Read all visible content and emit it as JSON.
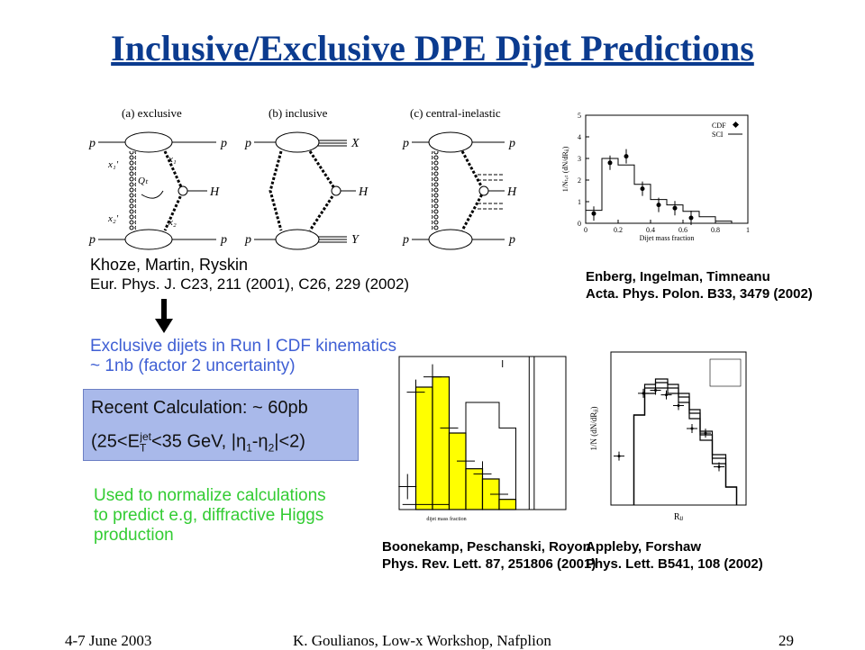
{
  "title": "Inclusive/Exclusive DPE Dijet Predictions",
  "diagrams": {
    "a_label": "(a) exclusive",
    "b_label": "(b) inclusive",
    "c_label": "(c) central-inelastic",
    "p": "p",
    "H": "H",
    "X": "X",
    "Y": "Y",
    "x1p": "x₁'",
    "x1": "x₁",
    "x2p": "x₂'",
    "x2": "x₂",
    "Qt": "Qₜ"
  },
  "cite_kmr": {
    "line1": "Khoze, Martin, Ryskin",
    "line2": "Eur. Phys. J. C23, 211 (2001), C26, 229 (2002)"
  },
  "cite_eit": {
    "line1": "Enberg, Ingelman, Timneanu",
    "line2": "Acta. Phys. Polon. B33, 3479 (2002)"
  },
  "cite_bpr": {
    "line1": "Boonekamp, Peschanski, Royon",
    "line2": "Phys. Rev. Lett. 87, 251806 (2001)"
  },
  "cite_af": {
    "line1": "Appleby, Forshaw",
    "line2": "Phys. Lett. B541, 108 (2002)"
  },
  "exclusive_note": {
    "line1": "Exclusive dijets in Run I CDF kinematics",
    "line2": "~ 1nb (factor 2 uncertainty)"
  },
  "calc_box": {
    "line1": "Recent Calculation: ~ 60pb",
    "l2_open": "(25<E",
    "l2_sub": "T",
    "l2_sup": "jet",
    "l2_rest": "<35 GeV, |η",
    "l2_sub1": "1",
    "l2_mid": "-η",
    "l2_sub2": "2",
    "l2_close": "|<2)"
  },
  "green_note": {
    "line1": "Used to normalize calculations",
    "line2": "to predict e.g, diffractive Higgs",
    "line3": "production"
  },
  "plot_eit": {
    "ylabel": "1/Nₜₒₜ (dN/dRⱼⱼ)",
    "xlabel": "Dijet mass fraction",
    "legend_cdf": "CDF",
    "legend_sci": "SCI",
    "xticks": [
      "0",
      "0.2",
      "0.4",
      "0.6",
      "0.8",
      "1"
    ],
    "yticks": [
      "0",
      "1",
      "2",
      "3",
      "4",
      "5"
    ]
  },
  "plot_af": {
    "ylabel": "1/N (dN/dRⱼⱼ)",
    "xlabel": "Rⱼⱼ"
  },
  "plot_bpr": {
    "xlabel": "dijet mass fraction"
  },
  "chart_data": [
    {
      "type": "line",
      "xlabel": "Dijet mass fraction",
      "ylabel": "1/Nₜₒₜ (dN/dRⱼⱼ)",
      "xlim": [
        0,
        1
      ],
      "ylim": [
        0,
        5
      ],
      "legend": "top-right",
      "series": [
        {
          "name": "CDF",
          "x": [
            0.05,
            0.15,
            0.25,
            0.35,
            0.45,
            0.55,
            0.65
          ],
          "y": [
            0.45,
            2.8,
            3.1,
            1.6,
            0.85,
            0.7,
            0.25
          ]
        },
        {
          "name": "SCI",
          "x": [
            0.0,
            0.1,
            0.2,
            0.3,
            0.4,
            0.5,
            0.6,
            0.7,
            0.8,
            0.9
          ],
          "y": [
            0.6,
            3.0,
            2.7,
            1.8,
            1.1,
            0.85,
            0.55,
            0.3,
            0.1,
            0.0
          ]
        }
      ]
    },
    {
      "type": "bar",
      "xlabel": "dijet mass fraction",
      "xlim": [
        0,
        1
      ],
      "series": [
        {
          "name": "",
          "x": [
            0.15,
            0.25,
            0.35,
            0.45,
            0.55,
            0.65
          ],
          "y": [
            2.4,
            2.6,
            1.5,
            0.8,
            0.6,
            0.2
          ]
        }
      ]
    },
    {
      "type": "line",
      "xlabel": "Rⱼⱼ",
      "ylabel": "1/N (dN/dRⱼⱼ)",
      "series": [
        {
          "name": "CDF",
          "x": [
            0.05,
            0.2,
            0.3,
            0.4,
            0.5,
            0.6,
            0.65
          ],
          "y": [
            0.4,
            3.0,
            3.1,
            2.3,
            1.0,
            0.9,
            0.4
          ]
        }
      ]
    }
  ],
  "footer": {
    "date": "4-7 June 2003",
    "author": "K. Goulianos, Low-x Workshop, Nafplion",
    "page": "29"
  }
}
